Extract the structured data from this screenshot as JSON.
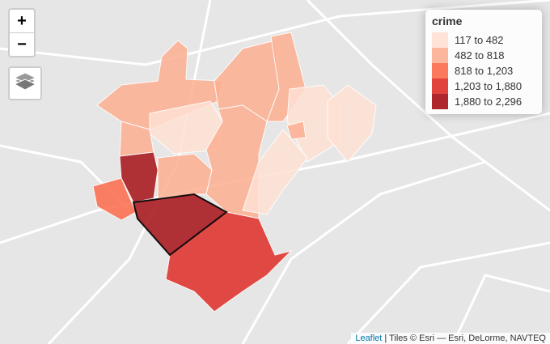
{
  "controls": {
    "zoom_in": "+",
    "zoom_out": "−"
  },
  "legend": {
    "title": "crime",
    "items": [
      {
        "label": "117 to 482",
        "color": "#fee0d2"
      },
      {
        "label": "482 to 818",
        "color": "#fcae91"
      },
      {
        "label": "818 to 1,203",
        "color": "#fb6a4a"
      },
      {
        "label": "1,203 to 1,880",
        "color": "#de2d26"
      },
      {
        "label": "1,880 to 2,296",
        "color": "#a50f15"
      }
    ]
  },
  "attribution": {
    "link": "Leaflet",
    "text": "| Tiles © Esri — Esri, DeLorme, NAVTEQ"
  }
}
